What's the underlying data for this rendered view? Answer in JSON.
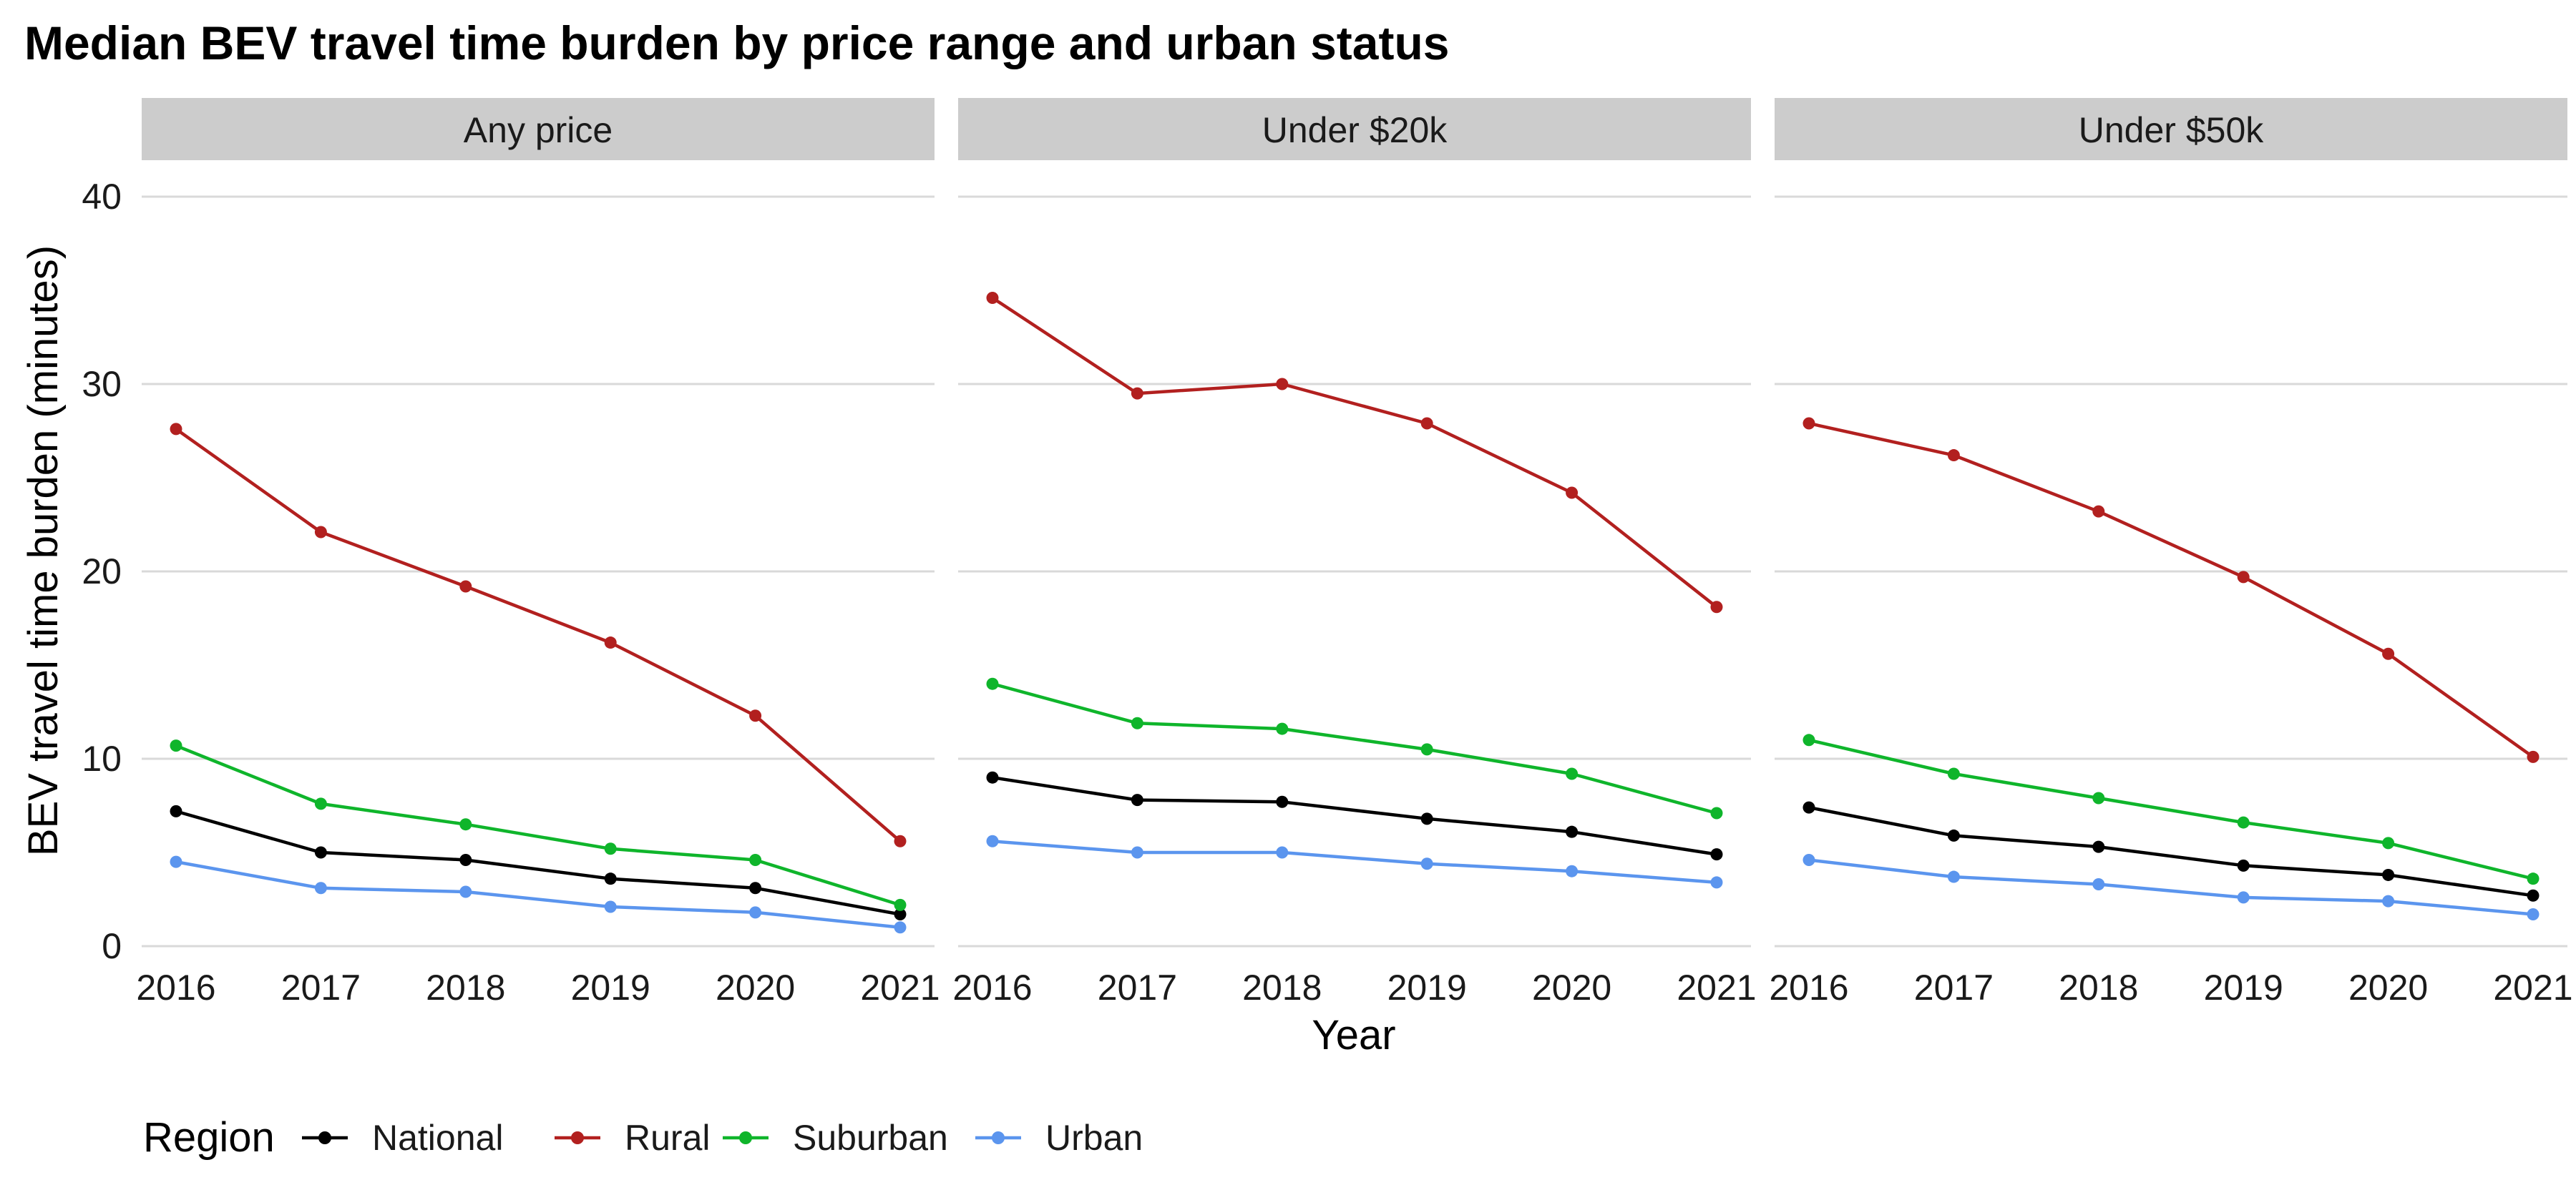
{
  "chart_data": {
    "type": "line",
    "title": "Median BEV travel time burden by price range and urban status",
    "xlabel": "Year",
    "ylabel": "BEV travel time burden (minutes)",
    "ylim": [
      0,
      40
    ],
    "y_ticks": [
      0,
      10,
      20,
      30,
      40
    ],
    "x": [
      2016,
      2017,
      2018,
      2019,
      2020,
      2021
    ],
    "grid": "horizontal",
    "legend": {
      "title": "Region",
      "placement": "bottom-left",
      "entries": [
        {
          "name": "National",
          "color": "#000000"
        },
        {
          "name": "Rural",
          "color": "#b2201f"
        },
        {
          "name": "Suburban",
          "color": "#0fb52b"
        },
        {
          "name": "Urban",
          "color": "#5b95ee"
        }
      ]
    },
    "panels": [
      {
        "strip": "Any price",
        "series": [
          {
            "name": "National",
            "values": [
              7.2,
              5.0,
              4.6,
              3.6,
              3.1,
              1.7
            ]
          },
          {
            "name": "Rural",
            "values": [
              27.6,
              22.1,
              19.2,
              16.2,
              12.3,
              5.6
            ]
          },
          {
            "name": "Suburban",
            "values": [
              10.7,
              7.6,
              6.5,
              5.2,
              4.6,
              2.2
            ]
          },
          {
            "name": "Urban",
            "values": [
              4.5,
              3.1,
              2.9,
              2.1,
              1.8,
              1.0
            ]
          }
        ]
      },
      {
        "strip": "Under $20k",
        "series": [
          {
            "name": "National",
            "values": [
              9.0,
              7.8,
              7.7,
              6.8,
              6.1,
              4.9
            ]
          },
          {
            "name": "Rural",
            "values": [
              34.6,
              29.5,
              30.0,
              27.9,
              24.2,
              18.1
            ]
          },
          {
            "name": "Suburban",
            "values": [
              14.0,
              11.9,
              11.6,
              10.5,
              9.2,
              7.1
            ]
          },
          {
            "name": "Urban",
            "values": [
              5.6,
              5.0,
              5.0,
              4.4,
              4.0,
              3.4
            ]
          }
        ]
      },
      {
        "strip": "Under $50k",
        "series": [
          {
            "name": "National",
            "values": [
              7.4,
              5.9,
              5.3,
              4.3,
              3.8,
              2.7
            ]
          },
          {
            "name": "Rural",
            "values": [
              27.9,
              26.2,
              23.2,
              19.7,
              15.6,
              10.1
            ]
          },
          {
            "name": "Suburban",
            "values": [
              11.0,
              9.2,
              7.9,
              6.6,
              5.5,
              3.6
            ]
          },
          {
            "name": "Urban",
            "values": [
              4.6,
              3.7,
              3.3,
              2.6,
              2.4,
              1.7
            ]
          }
        ]
      }
    ]
  }
}
